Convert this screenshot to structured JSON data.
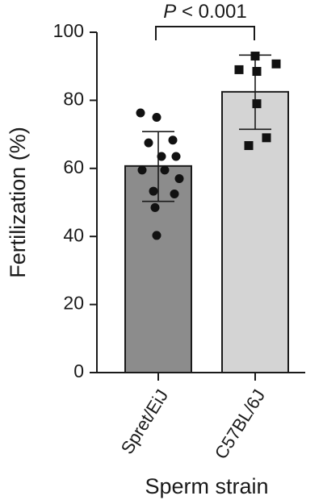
{
  "chart_data": {
    "type": "bar",
    "title": "",
    "xlabel": "Sperm strain",
    "ylabel": "Fertilization (%)",
    "ylim": [
      0,
      100
    ],
    "yticks": [
      0,
      20,
      40,
      60,
      80,
      100
    ],
    "categories": [
      "Spret/EiJ",
      "C57BL/6J"
    ],
    "values": [
      60.7,
      82.5
    ],
    "error_bars": [
      {
        "low": 50.3,
        "high": 70.8
      },
      {
        "low": 71.5,
        "high": 93.3
      }
    ],
    "bar_colors": [
      "#8c8c8c",
      "#d4d4d4"
    ],
    "points": [
      {
        "category": "Spret/EiJ",
        "marker": "circle",
        "values": [
          76.3,
          75.0,
          68.3,
          67.5,
          63.5,
          63.5,
          59.5,
          59.5,
          57.0,
          53.3,
          52.5,
          48.5,
          40.3
        ]
      },
      {
        "category": "C57BL/6J",
        "marker": "square",
        "values": [
          93.0,
          90.7,
          89.0,
          88.5,
          79.0,
          69.0,
          66.7
        ]
      }
    ],
    "annotation": {
      "prefix": "P",
      "text": " < 0.001"
    }
  }
}
